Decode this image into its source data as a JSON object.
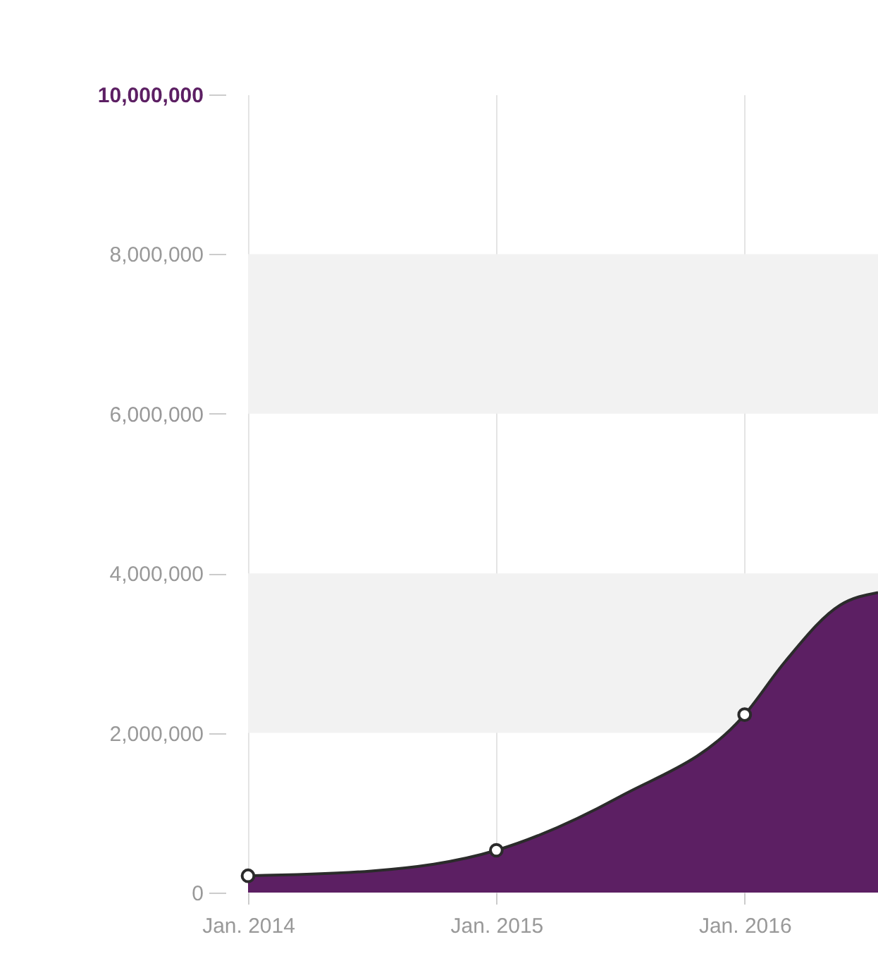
{
  "chart_data": {
    "type": "area",
    "xlim": [
      "2014-01-01",
      "2016-07-15"
    ],
    "xticks": [
      {
        "value": "2014-01-01",
        "label": "Jan. 2014"
      },
      {
        "value": "2015-01-01",
        "label": "Jan. 2015"
      },
      {
        "value": "2016-01-01",
        "label": "Jan. 2016"
      }
    ],
    "ylim": [
      0,
      10000000
    ],
    "yticks": [
      {
        "value": 0,
        "label": "0"
      },
      {
        "value": 2000000,
        "label": "2,000,000"
      },
      {
        "value": 4000000,
        "label": "4,000,000"
      },
      {
        "value": 6000000,
        "label": "6,000,000"
      },
      {
        "value": 8000000,
        "label": "8,000,000"
      },
      {
        "value": 10000000,
        "label": "10,000,000"
      }
    ],
    "grid": "x",
    "bands": [
      {
        "axis": "y",
        "from": 2000000,
        "to": 4000000,
        "color": "#f2f2f2"
      },
      {
        "axis": "y",
        "from": 6000000,
        "to": 8000000,
        "color": "#f2f2f2"
      }
    ],
    "series": [
      {
        "color": "#5c1f63",
        "x": [
          "2014-01-01",
          "2014-07-01",
          "2015-01-01",
          "2015-07-01",
          "2016-01-01",
          "2016-03-01",
          "2016-05-20",
          "2016-07-15"
        ],
        "values": [
          210000,
          270000,
          530000,
          1200000,
          2230000,
          2900000,
          3600000,
          3760000
        ]
      },
      {
        "type": "scatter",
        "color": "#ffffff",
        "marker": "circle",
        "x": [
          "2014-01-01",
          "2015-01-01",
          "2016-01-01"
        ],
        "values": [
          210000,
          530000,
          2230000
        ]
      }
    ]
  }
}
